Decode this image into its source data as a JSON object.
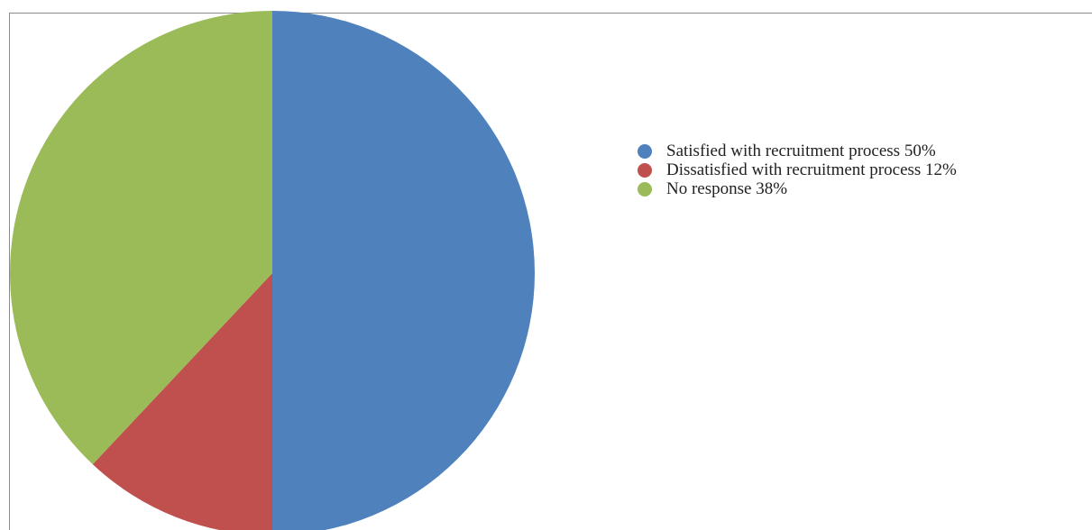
{
  "chart_data": {
    "type": "pie",
    "title": "",
    "legend_position": "right",
    "slices": [
      {
        "label": "Satisfied with recruitment process 50%",
        "value": 50,
        "color": "#4f81bd"
      },
      {
        "label": "Dissatisfied with recruitment process 12%",
        "value": 12,
        "color": "#c0504d"
      },
      {
        "label": "No response 38%",
        "value": 38,
        "color": "#9bbb59"
      }
    ]
  }
}
